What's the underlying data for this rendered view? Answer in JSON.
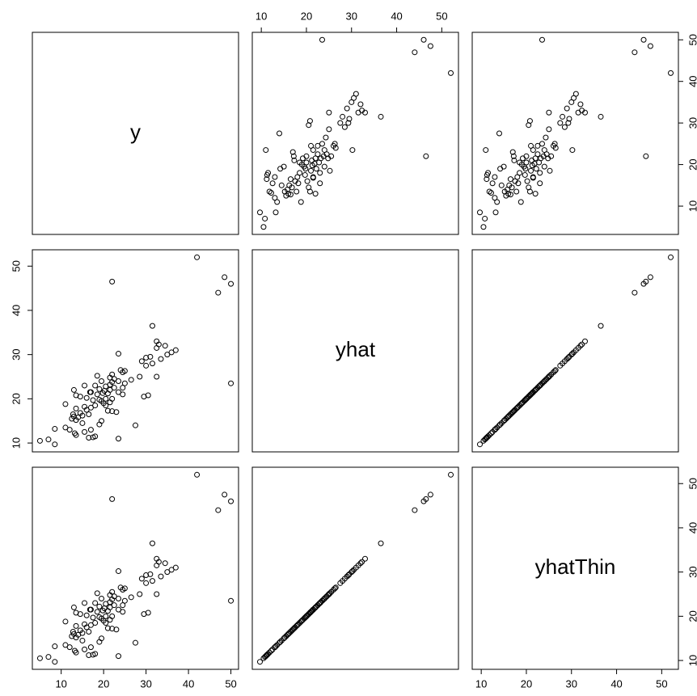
{
  "chart_data": {
    "type": "pairs",
    "variables": [
      {
        "name": "y",
        "lim": [
          3.2,
          51.8
        ],
        "ticks": [
          10,
          20,
          30,
          40,
          50
        ],
        "values": [
          8.5,
          5,
          7,
          23.5,
          17.5,
          18,
          16.5,
          13.5,
          13.2,
          15.5,
          12,
          8.5,
          11,
          27.5,
          19,
          19.5,
          13.5,
          12.5,
          14,
          13,
          15,
          12.8,
          14.5,
          23,
          22,
          21,
          16,
          13.5,
          17,
          15.5,
          18,
          11,
          20,
          21.5,
          19.5,
          17.5,
          22,
          20.5,
          16,
          14.5,
          29.5,
          30.5,
          24.5,
          18.5,
          21,
          19.8,
          23.5,
          17,
          20.2,
          21.5,
          13,
          19,
          22.5,
          24.5,
          20.5,
          18,
          15.5,
          21.5,
          50,
          25,
          22,
          19.5,
          23.5,
          26.5,
          22.5,
          21.5,
          28.5,
          32.5,
          22,
          24.5,
          25,
          24,
          30,
          31.5,
          29,
          33.5,
          30,
          31,
          35,
          23.5,
          36,
          37,
          32.5,
          34.5,
          33,
          32.5,
          31.5,
          47,
          50,
          22,
          48.5,
          42,
          19,
          20.5,
          16.5,
          15,
          17,
          16.8,
          13.5,
          18.5
        ]
      },
      {
        "name": "yhat",
        "lim": [
          8.0,
          53.7
        ],
        "ticks": [
          10,
          20,
          30,
          40,
          50
        ],
        "values": [
          9.7,
          10.5,
          10.8,
          11,
          11.3,
          11.5,
          11.2,
          11.8,
          12.2,
          12.5,
          13,
          13.2,
          13.5,
          14,
          14.2,
          15,
          15.2,
          15.5,
          15.8,
          16,
          16.2,
          16.5,
          16.8,
          17,
          17.2,
          17.3,
          17.5,
          17.8,
          18,
          18.2,
          18.5,
          18.8,
          19,
          19.2,
          19.5,
          19.7,
          20,
          20,
          20.2,
          20.5,
          20.5,
          20.8,
          21,
          21,
          21.2,
          21.3,
          21.5,
          21.5,
          21.8,
          22,
          22,
          22.2,
          22.5,
          22.5,
          22.8,
          23,
          23,
          23.2,
          23.5,
          23.5,
          23.8,
          24,
          24,
          24.3,
          24.5,
          24.8,
          25,
          25,
          25.5,
          26,
          26.3,
          26.5,
          27.5,
          28,
          28.5,
          29,
          29.3,
          29.5,
          30,
          30.2,
          30.5,
          31,
          31.5,
          32,
          32.3,
          33,
          36.5,
          44,
          46,
          46.5,
          47.5,
          52,
          19.8,
          18.5,
          16.5,
          14.5,
          13,
          21.5,
          20.8,
          25.2
        ]
      },
      {
        "name": "yhatThin",
        "lim": [
          8.0,
          53.7
        ],
        "ticks": [
          10,
          20,
          30,
          40,
          50
        ],
        "values": [
          9.7,
          10.5,
          10.8,
          11,
          11.3,
          11.5,
          11.2,
          11.8,
          12.2,
          12.5,
          13,
          13.2,
          13.5,
          14,
          14.2,
          15,
          15.2,
          15.5,
          15.8,
          16,
          16.2,
          16.5,
          16.8,
          17,
          17.2,
          17.3,
          17.5,
          17.8,
          18,
          18.2,
          18.5,
          18.8,
          19,
          19.2,
          19.5,
          19.7,
          20,
          20,
          20.2,
          20.5,
          20.5,
          20.8,
          21,
          21,
          21.2,
          21.3,
          21.5,
          21.5,
          21.8,
          22,
          22,
          22.2,
          22.5,
          22.5,
          22.8,
          23,
          23,
          23.2,
          23.5,
          23.5,
          23.8,
          24,
          24,
          24.3,
          24.5,
          24.8,
          25,
          25,
          25.5,
          26,
          26.3,
          26.5,
          27.5,
          28,
          28.5,
          29,
          29.3,
          29.5,
          30,
          30.2,
          30.5,
          31,
          31.5,
          32,
          32.3,
          33,
          36.5,
          44,
          46,
          46.5,
          47.5,
          52,
          19.8,
          18.5,
          16.5,
          14.5,
          13,
          21.5,
          20.8,
          25.2
        ]
      }
    ]
  }
}
